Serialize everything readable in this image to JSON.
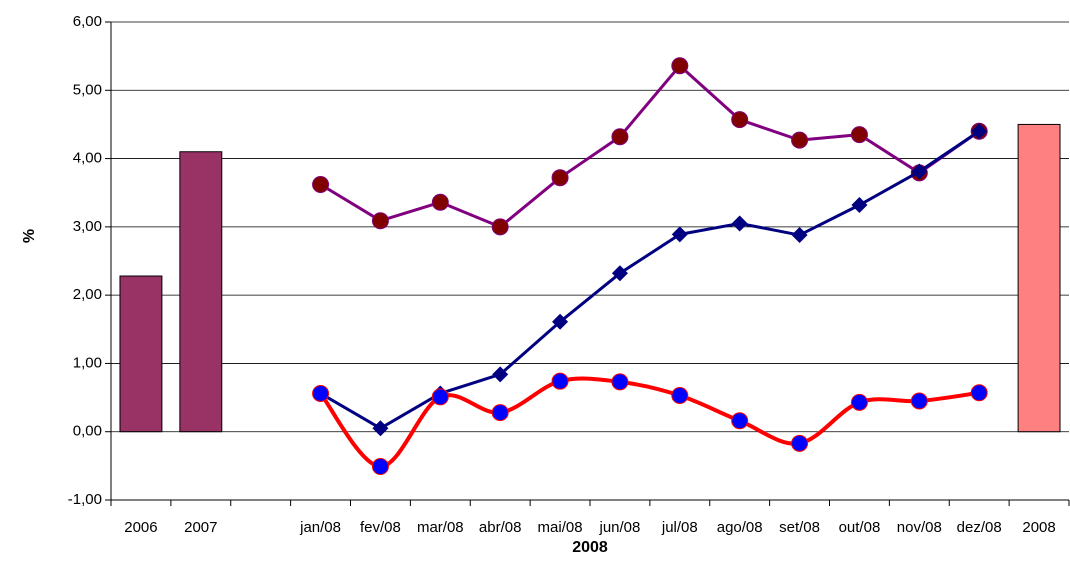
{
  "chart_data": {
    "type": "line",
    "x_label": "2008",
    "y_label": "%",
    "categories": [
      "2006",
      "2007",
      null,
      "jan/08",
      "fev/08",
      "mar/08",
      "abr/08",
      "mai/08",
      "jun/08",
      "jul/08",
      "ago/08",
      "set/08",
      "out/08",
      "nov/08",
      "dez/08",
      "2008"
    ],
    "ylim": [
      -1,
      6
    ],
    "yticks": [
      {
        "value": -1,
        "label": "-1,00"
      },
      {
        "value": 0,
        "label": "0,00"
      },
      {
        "value": 1,
        "label": "1,00"
      },
      {
        "value": 2,
        "label": "2,00"
      },
      {
        "value": 3,
        "label": "3,00"
      },
      {
        "value": 4,
        "label": "4,00"
      },
      {
        "value": 5,
        "label": "5,00"
      },
      {
        "value": 6,
        "label": "6,00"
      }
    ],
    "grid": true,
    "series": [
      {
        "type": "bar",
        "color": "#993366",
        "values": [
          2.28,
          4.1,
          null,
          null,
          null,
          null,
          null,
          null,
          null,
          null,
          null,
          null,
          null,
          null,
          null,
          null
        ]
      },
      {
        "type": "bar",
        "color": "#ff8080",
        "values": [
          null,
          null,
          null,
          null,
          null,
          null,
          null,
          null,
          null,
          null,
          null,
          null,
          null,
          null,
          null,
          4.5
        ]
      },
      {
        "type": "line",
        "color": "#800080",
        "marker": "circle",
        "marker_color": "#800000",
        "smooth": false,
        "values": [
          null,
          null,
          null,
          3.62,
          3.09,
          3.36,
          3.0,
          3.72,
          4.32,
          5.36,
          4.57,
          4.27,
          4.35,
          3.79,
          4.4,
          null
        ]
      },
      {
        "type": "line",
        "color": "#000080",
        "marker": "diamond",
        "marker_color": "#000080",
        "smooth": false,
        "values": [
          null,
          null,
          null,
          0.56,
          0.05,
          0.56,
          0.84,
          1.61,
          2.32,
          2.89,
          3.05,
          2.88,
          3.32,
          3.81,
          4.4,
          null
        ]
      },
      {
        "type": "line",
        "color": "#ff0000",
        "marker": "circle",
        "marker_color": "#0000ff",
        "smooth": true,
        "values": [
          null,
          null,
          null,
          0.56,
          -0.51,
          0.51,
          0.28,
          0.74,
          0.73,
          0.53,
          0.16,
          -0.17,
          0.43,
          0.45,
          0.57,
          null
        ]
      }
    ]
  }
}
